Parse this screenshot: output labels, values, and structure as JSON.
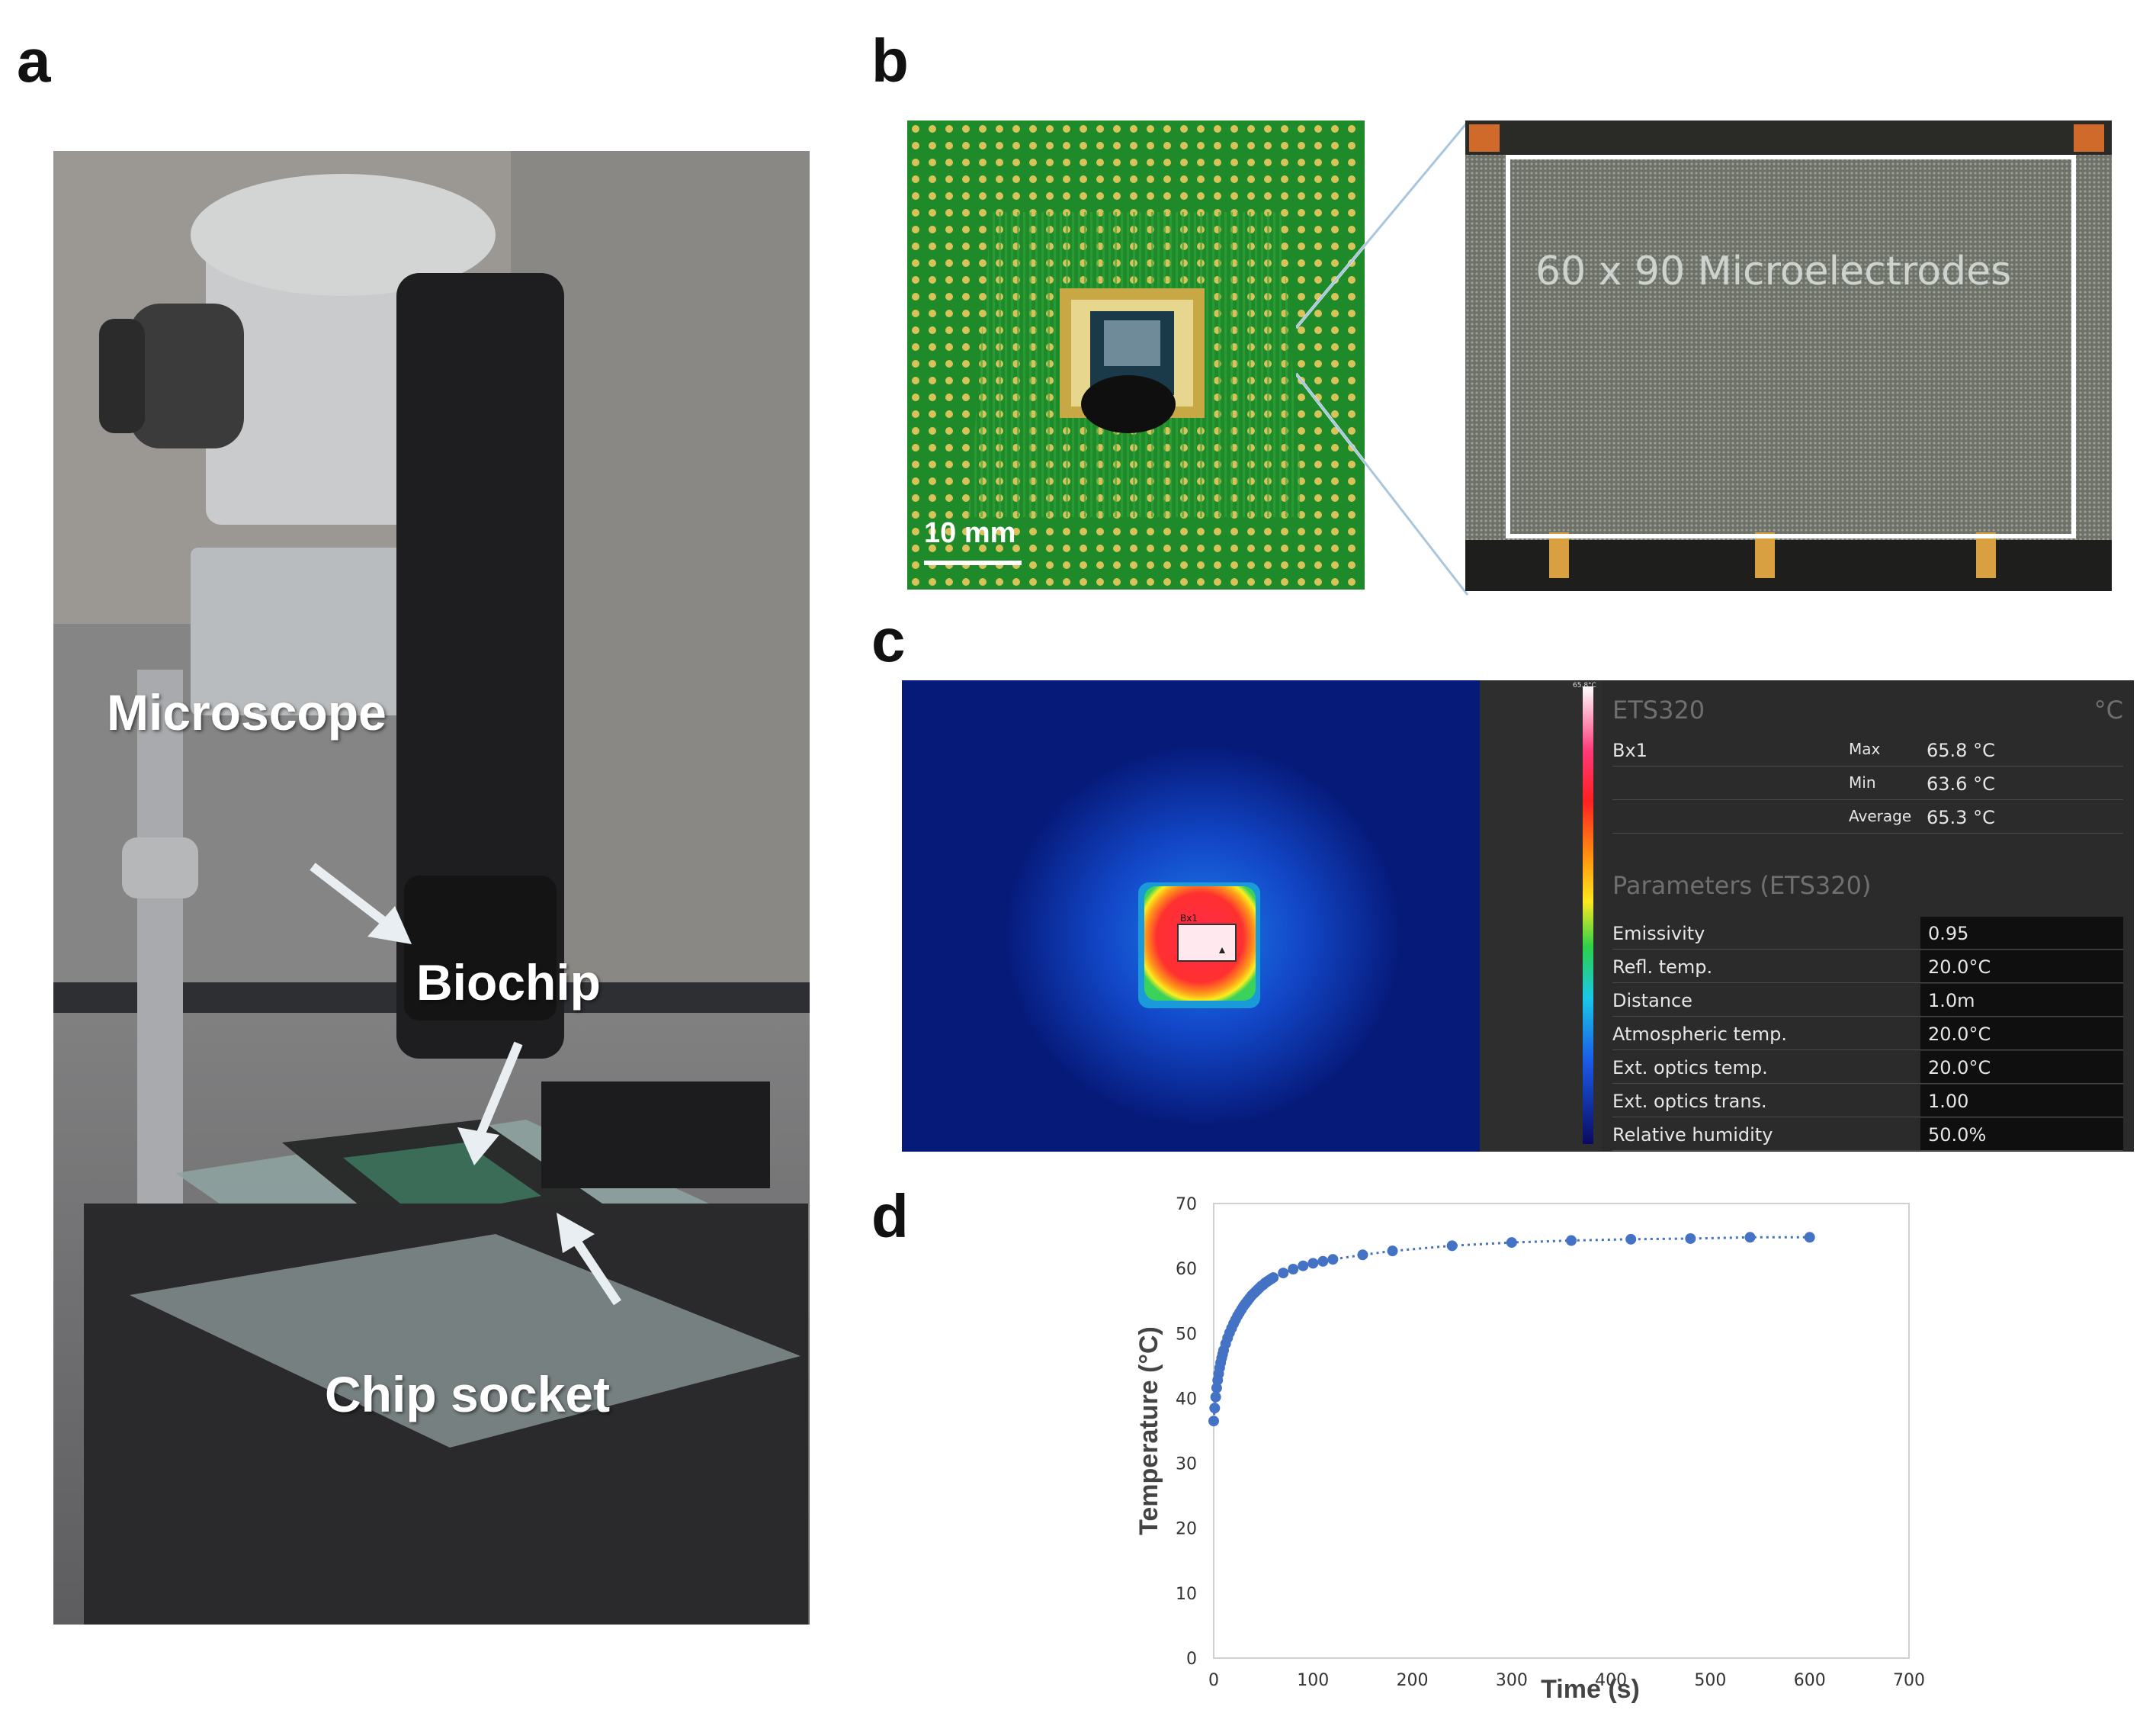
{
  "panels": {
    "a": "a",
    "b": "b",
    "c": "c",
    "d": "d"
  },
  "panel_a": {
    "labels": {
      "microscope": "Microscope",
      "biochip": "Biochip",
      "chip_socket": "Chip socket"
    }
  },
  "panel_b": {
    "scale_bar": "10 mm",
    "array_label": "60 x 90 Microelectrodes"
  },
  "panel_c": {
    "header": {
      "camera": "ETS320",
      "unit": "°C"
    },
    "box_name": "Bx1",
    "stats": [
      {
        "label": "Max",
        "value": "65.8 °C"
      },
      {
        "label": "Min",
        "value": "63.6 °C"
      },
      {
        "label": "Average",
        "value": "65.3 °C"
      }
    ],
    "parameters_title": "Parameters (ETS320)",
    "parameters": [
      {
        "label": "Emissivity",
        "value": "0.95"
      },
      {
        "label": "Refl. temp.",
        "value": "20.0°C"
      },
      {
        "label": "Distance",
        "value": "1.0m"
      },
      {
        "label": "Atmospheric temp.",
        "value": "20.0°C"
      },
      {
        "label": "Ext. optics temp.",
        "value": "20.0°C"
      },
      {
        "label": "Ext. optics trans.",
        "value": "1.00"
      },
      {
        "label": "Relative humidity",
        "value": "50.0%"
      }
    ],
    "colorbar_top": "65.8°C",
    "box_tag": "Bx1"
  },
  "chart_data": {
    "type": "scatter",
    "xlabel": "Time (s)",
    "ylabel": "Temperature (°C)",
    "xlim": [
      0,
      700
    ],
    "ylim": [
      0,
      70
    ],
    "xticks": [
      0,
      100,
      200,
      300,
      400,
      500,
      600,
      700
    ],
    "yticks": [
      0,
      10,
      20,
      30,
      40,
      50,
      60,
      70
    ],
    "grid": false,
    "trendline": "dotted",
    "series": [
      {
        "color": "#4472c4",
        "x": [
          0,
          1,
          2,
          3,
          4,
          5,
          6,
          7,
          8,
          9,
          10,
          12,
          14,
          16,
          18,
          20,
          22,
          24,
          26,
          28,
          30,
          32,
          34,
          36,
          38,
          40,
          42,
          44,
          46,
          48,
          50,
          52,
          54,
          56,
          58,
          60,
          70,
          80,
          90,
          100,
          110,
          120,
          150,
          180,
          240,
          300,
          360,
          420,
          480,
          540,
          600
        ],
        "y": [
          36.5,
          38.5,
          40.2,
          41.6,
          42.8,
          43.8,
          44.7,
          45.5,
          46.2,
          46.8,
          47.4,
          48.4,
          49.3,
          50.1,
          50.8,
          51.5,
          52.1,
          52.7,
          53.2,
          53.7,
          54.2,
          54.6,
          55.0,
          55.4,
          55.8,
          56.1,
          56.4,
          56.7,
          57.0,
          57.3,
          57.5,
          57.8,
          58.0,
          58.2,
          58.4,
          58.6,
          59.3,
          59.9,
          60.4,
          60.8,
          61.1,
          61.4,
          62.1,
          62.7,
          63.5,
          64.0,
          64.3,
          64.5,
          64.6,
          64.8,
          64.8
        ]
      }
    ]
  }
}
